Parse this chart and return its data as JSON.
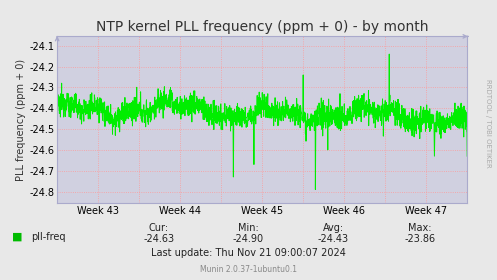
{
  "title": "NTP kernel PLL frequency (ppm + 0) - by month",
  "ylabel": "PLL frequency (ppm + 0)",
  "yticks": [
    -24.1,
    -24.2,
    -24.3,
    -24.4,
    -24.5,
    -24.6,
    -24.7,
    -24.8
  ],
  "ylim": [
    -24.855,
    -24.055
  ],
  "bg_color": "#e8e8e8",
  "plot_bg_color": "#d0d0e0",
  "grid_color": "#ff9999",
  "line_color": "#00ee00",
  "week_labels": [
    "Week 43",
    "Week 44",
    "Week 45",
    "Week 46",
    "Week 47"
  ],
  "legend_label": "pll-freq",
  "legend_color": "#00bb00",
  "cur": "-24.63",
  "min": "-24.90",
  "avg": "-24.43",
  "max": "-23.86",
  "last_update": "Last update: Thu Nov 21 09:00:07 2024",
  "munin_version": "Munin 2.0.37-1ubuntu0.1",
  "rrdtool_label": "RRDTOOL / TOBI OETIKER",
  "title_fontsize": 10,
  "ylabel_fontsize": 7,
  "tick_fontsize": 7,
  "stats_fontsize": 7,
  "arrow_color": "#aaaacc"
}
